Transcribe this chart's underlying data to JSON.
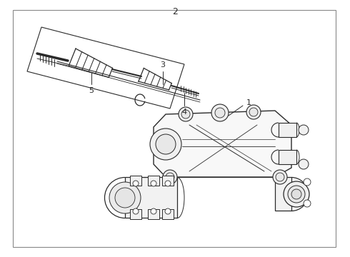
{
  "bg_color": "#ffffff",
  "line_color": "#2a2a2a",
  "border_color": "#888888",
  "fig_width": 4.9,
  "fig_height": 3.6,
  "dpi": 100
}
